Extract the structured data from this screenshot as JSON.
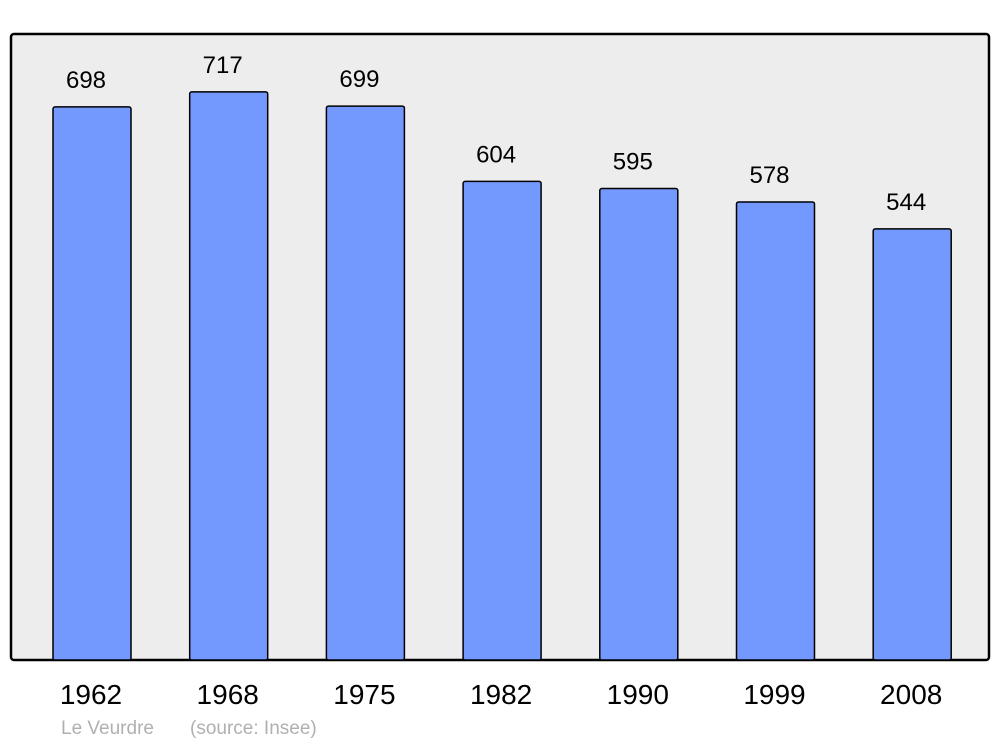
{
  "chart_data": {
    "type": "bar",
    "title": "",
    "xlabel": "",
    "ylabel": "",
    "categories": [
      "1962",
      "1968",
      "1975",
      "1982",
      "1990",
      "1999",
      "2008"
    ],
    "values": [
      698,
      717,
      699,
      604,
      595,
      578,
      544
    ],
    "ylim": [
      0,
      790
    ],
    "grid": false,
    "data_labels": true,
    "colors": {
      "bar": "#7399ff",
      "background": "#ededed",
      "border": "#000000"
    }
  },
  "footer": {
    "place": "Le Veurdre",
    "source": "(source: Insee)"
  }
}
